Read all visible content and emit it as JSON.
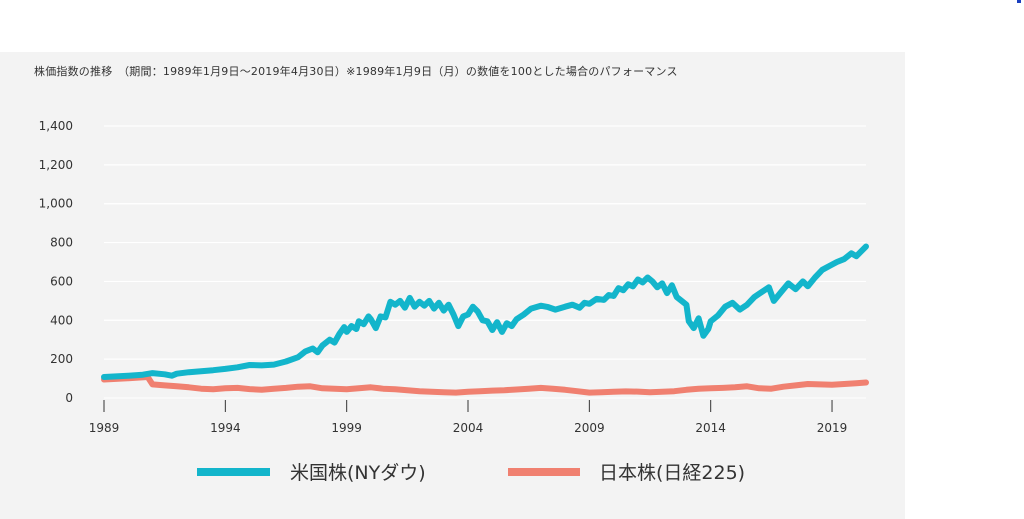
{
  "colors": {
    "us": "#13b5cb",
    "japan": "#f08070",
    "grid": "#ffffff",
    "background": "#f3f3f3"
  },
  "chart_data": {
    "type": "line",
    "title": "株価指数の推移　（期間：1989年1月9日〜2019年4月30日）※1989年1月9日（月）の数値を100とした場合のパフォーマンス",
    "xlabel": "",
    "ylabel": "",
    "xlim": [
      1989,
      2020.4
    ],
    "ylim": [
      0,
      1400
    ],
    "x_ticks": [
      "1989",
      "1994",
      "1999",
      "2004",
      "2009",
      "2014",
      "2019"
    ],
    "y_ticks": [
      "0",
      "200",
      "400",
      "600",
      "800",
      "1,000",
      "1,200",
      "1,400"
    ],
    "grid": true,
    "legend_position": "bottom",
    "series": [
      {
        "name": "米国株(NYダウ)",
        "color": "#13b5cb",
        "points": [
          [
            1989.0,
            108
          ],
          [
            1990.0,
            115
          ],
          [
            1990.6,
            120
          ],
          [
            1991.0,
            128
          ],
          [
            1991.5,
            122
          ],
          [
            1991.8,
            115
          ],
          [
            1992.0,
            125
          ],
          [
            1992.5,
            133
          ],
          [
            1993.0,
            138
          ],
          [
            1993.5,
            143
          ],
          [
            1994.0,
            150
          ],
          [
            1994.5,
            158
          ],
          [
            1995.0,
            170
          ],
          [
            1995.5,
            168
          ],
          [
            1996.0,
            172
          ],
          [
            1996.5,
            188
          ],
          [
            1997.0,
            210
          ],
          [
            1997.3,
            240
          ],
          [
            1997.6,
            255
          ],
          [
            1997.8,
            235
          ],
          [
            1998.0,
            270
          ],
          [
            1998.3,
            300
          ],
          [
            1998.5,
            285
          ],
          [
            1998.7,
            330
          ],
          [
            1998.9,
            365
          ],
          [
            1999.0,
            340
          ],
          [
            1999.2,
            370
          ],
          [
            1999.4,
            355
          ],
          [
            1999.5,
            395
          ],
          [
            1999.7,
            380
          ],
          [
            1999.9,
            420
          ],
          [
            2000.0,
            405
          ],
          [
            2000.2,
            360
          ],
          [
            2000.4,
            420
          ],
          [
            2000.6,
            415
          ],
          [
            2000.8,
            495
          ],
          [
            2001.0,
            480
          ],
          [
            2001.2,
            500
          ],
          [
            2001.4,
            465
          ],
          [
            2001.6,
            515
          ],
          [
            2001.8,
            470
          ],
          [
            2002.0,
            495
          ],
          [
            2002.2,
            475
          ],
          [
            2002.4,
            500
          ],
          [
            2002.6,
            460
          ],
          [
            2002.8,
            490
          ],
          [
            2003.0,
            450
          ],
          [
            2003.2,
            480
          ],
          [
            2003.4,
            430
          ],
          [
            2003.6,
            370
          ],
          [
            2003.8,
            420
          ],
          [
            2004.0,
            430
          ],
          [
            2004.2,
            470
          ],
          [
            2004.4,
            445
          ],
          [
            2004.6,
            400
          ],
          [
            2004.8,
            395
          ],
          [
            2005.0,
            350
          ],
          [
            2005.2,
            390
          ],
          [
            2005.4,
            340
          ],
          [
            2005.6,
            385
          ],
          [
            2005.8,
            370
          ],
          [
            2006.0,
            405
          ],
          [
            2006.3,
            430
          ],
          [
            2006.6,
            460
          ],
          [
            2007.0,
            475
          ],
          [
            2007.3,
            468
          ],
          [
            2007.6,
            455
          ],
          [
            2008.0,
            470
          ],
          [
            2008.3,
            480
          ],
          [
            2008.6,
            465
          ],
          [
            2008.8,
            490
          ],
          [
            2009.0,
            485
          ],
          [
            2009.3,
            510
          ],
          [
            2009.6,
            505
          ],
          [
            2009.8,
            530
          ],
          [
            2010.0,
            525
          ],
          [
            2010.2,
            565
          ],
          [
            2010.4,
            555
          ],
          [
            2010.6,
            585
          ],
          [
            2010.8,
            575
          ],
          [
            2011.0,
            610
          ],
          [
            2011.2,
            595
          ],
          [
            2011.4,
            620
          ],
          [
            2011.6,
            600
          ],
          [
            2011.8,
            570
          ],
          [
            2012.0,
            590
          ],
          [
            2012.2,
            540
          ],
          [
            2012.4,
            580
          ],
          [
            2012.6,
            520
          ],
          [
            2012.8,
            500
          ],
          [
            2013.0,
            480
          ],
          [
            2013.1,
            395
          ],
          [
            2013.3,
            360
          ],
          [
            2013.5,
            410
          ],
          [
            2013.7,
            320
          ],
          [
            2013.9,
            355
          ],
          [
            2014.0,
            395
          ],
          [
            2014.3,
            425
          ],
          [
            2014.6,
            470
          ],
          [
            2014.9,
            490
          ],
          [
            2015.2,
            455
          ],
          [
            2015.5,
            480
          ],
          [
            2015.8,
            520
          ],
          [
            2016.1,
            545
          ],
          [
            2016.4,
            570
          ],
          [
            2016.6,
            500
          ],
          [
            2016.9,
            545
          ],
          [
            2017.2,
            590
          ],
          [
            2017.5,
            560
          ],
          [
            2017.8,
            600
          ],
          [
            2018.0,
            575
          ],
          [
            2018.3,
            620
          ],
          [
            2018.6,
            660
          ],
          [
            2018.9,
            680
          ],
          [
            2019.2,
            700
          ],
          [
            2019.5,
            715
          ],
          [
            2019.8,
            745
          ],
          [
            2020.0,
            730
          ],
          [
            2020.4,
            780
          ]
        ]
      },
      {
        "name": "日本株(日経225)",
        "color": "#f08070",
        "points": [
          [
            1989.0,
            95
          ],
          [
            1990.0,
            102
          ],
          [
            1990.8,
            108
          ],
          [
            1991.0,
            70
          ],
          [
            1991.5,
            65
          ],
          [
            1992.0,
            60
          ],
          [
            1992.5,
            55
          ],
          [
            1993.0,
            48
          ],
          [
            1993.5,
            45
          ],
          [
            1994.0,
            50
          ],
          [
            1994.5,
            52
          ],
          [
            1995.0,
            46
          ],
          [
            1995.5,
            42
          ],
          [
            1996.0,
            48
          ],
          [
            1996.5,
            52
          ],
          [
            1997.0,
            58
          ],
          [
            1997.5,
            60
          ],
          [
            1998.0,
            50
          ],
          [
            1998.5,
            48
          ],
          [
            1999.0,
            45
          ],
          [
            1999.5,
            50
          ],
          [
            2000.0,
            55
          ],
          [
            2000.5,
            48
          ],
          [
            2001.0,
            45
          ],
          [
            2001.5,
            40
          ],
          [
            2002.0,
            35
          ],
          [
            2002.5,
            32
          ],
          [
            2003.0,
            30
          ],
          [
            2003.5,
            28
          ],
          [
            2004.0,
            32
          ],
          [
            2004.5,
            35
          ],
          [
            2005.0,
            38
          ],
          [
            2005.5,
            40
          ],
          [
            2006.0,
            44
          ],
          [
            2006.5,
            48
          ],
          [
            2007.0,
            52
          ],
          [
            2007.5,
            48
          ],
          [
            2008.0,
            42
          ],
          [
            2008.5,
            35
          ],
          [
            2009.0,
            28
          ],
          [
            2009.5,
            30
          ],
          [
            2010.0,
            32
          ],
          [
            2010.5,
            34
          ],
          [
            2011.0,
            33
          ],
          [
            2011.5,
            30
          ],
          [
            2012.0,
            32
          ],
          [
            2012.5,
            35
          ],
          [
            2013.0,
            42
          ],
          [
            2013.5,
            48
          ],
          [
            2014.0,
            50
          ],
          [
            2014.5,
            52
          ],
          [
            2015.0,
            55
          ],
          [
            2015.5,
            60
          ],
          [
            2016.0,
            50
          ],
          [
            2016.5,
            48
          ],
          [
            2017.0,
            58
          ],
          [
            2017.5,
            65
          ],
          [
            2018.0,
            72
          ],
          [
            2018.5,
            70
          ],
          [
            2019.0,
            68
          ],
          [
            2019.5,
            72
          ],
          [
            2020.0,
            76
          ],
          [
            2020.4,
            80
          ]
        ]
      }
    ]
  }
}
